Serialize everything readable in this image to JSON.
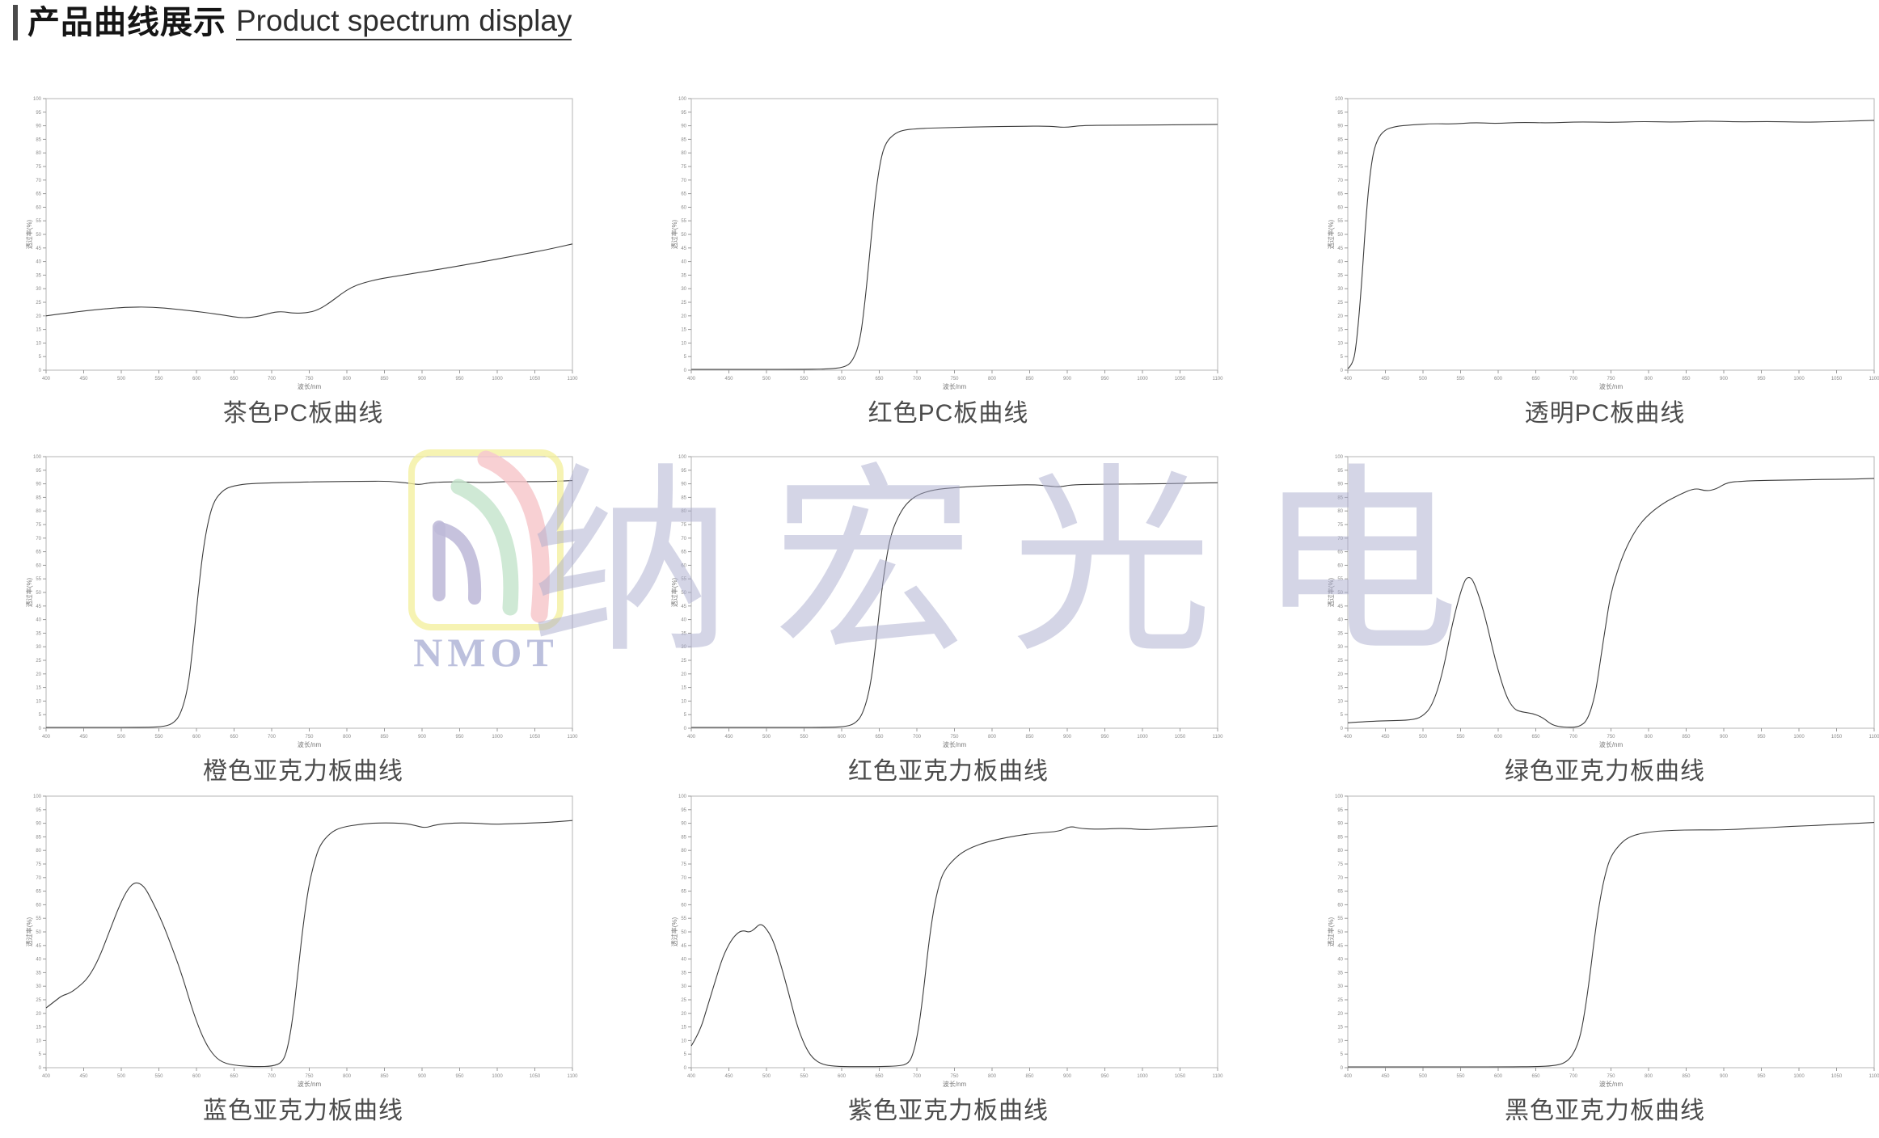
{
  "page": {
    "title_zh": "产品曲线展示",
    "title_en": "Product spectrum display"
  },
  "watermark": {
    "chars": [
      "纳",
      "宏",
      "光",
      "电"
    ],
    "logo_text": "NMOT",
    "colors": {
      "frame_yellow": "#f3ee9a",
      "arc_red": "#f5c3c8",
      "arc_green": "#c2e2ca",
      "arc_purple": "#b7b1d4",
      "text_purple": "#a9acd0"
    }
  },
  "axes": {
    "x_label": "波长/nm",
    "y_label": "透过率(%)",
    "x_ticks": [
      400,
      450,
      500,
      550,
      600,
      650,
      700,
      750,
      800,
      850,
      900,
      950,
      1000,
      1050,
      1100
    ],
    "y_ticks": [
      0,
      5,
      10,
      15,
      20,
      25,
      30,
      35,
      40,
      45,
      50,
      55,
      60,
      65,
      70,
      75,
      80,
      85,
      90,
      95,
      100
    ],
    "curve_color": "#3c3c3c"
  },
  "chart_data": [
    {
      "type": "line",
      "title": "茶色PC板曲线",
      "xlabel": "波长/nm",
      "ylabel": "透过率(%)",
      "xlim": [
        400,
        1100
      ],
      "ylim": [
        0,
        100
      ],
      "points": [
        [
          400,
          20
        ],
        [
          435,
          21.3
        ],
        [
          470,
          22.4
        ],
        [
          505,
          23.2
        ],
        [
          540,
          23.3
        ],
        [
          575,
          22.4
        ],
        [
          610,
          21.3
        ],
        [
          638,
          20.2
        ],
        [
          659,
          19.2
        ],
        [
          680,
          19.6
        ],
        [
          701,
          21.3
        ],
        [
          715,
          21.6
        ],
        [
          729,
          20.9
        ],
        [
          750,
          21.2
        ],
        [
          764,
          22.5
        ],
        [
          778,
          25
        ],
        [
          792,
          28
        ],
        [
          806,
          30.5
        ],
        [
          820,
          32
        ],
        [
          841,
          33.5
        ],
        [
          869,
          34.8
        ],
        [
          904,
          36.3
        ],
        [
          946,
          38.2
        ],
        [
          988,
          40.3
        ],
        [
          1030,
          42.5
        ],
        [
          1065,
          44.3
        ],
        [
          1100,
          46.5
        ]
      ]
    },
    {
      "type": "line",
      "title": "红色PC板曲线",
      "xlabel": "波长/nm",
      "ylabel": "透过率(%)",
      "xlim": [
        400,
        1100
      ],
      "ylim": [
        0,
        100
      ],
      "points": [
        [
          400,
          0.3
        ],
        [
          470,
          0.3
        ],
        [
          540,
          0.3
        ],
        [
          582,
          0.4
        ],
        [
          603,
          1
        ],
        [
          614,
          3
        ],
        [
          624,
          10
        ],
        [
          631,
          25
        ],
        [
          638,
          45
        ],
        [
          645,
          65
        ],
        [
          652,
          78
        ],
        [
          659,
          84
        ],
        [
          670,
          87
        ],
        [
          680,
          88.3
        ],
        [
          701,
          89
        ],
        [
          736,
          89.3
        ],
        [
          785,
          89.6
        ],
        [
          834,
          89.8
        ],
        [
          876,
          89.9
        ],
        [
          897,
          89.3
        ],
        [
          918,
          90.1
        ],
        [
          960,
          90.2
        ],
        [
          1016,
          90.3
        ],
        [
          1100,
          90.5
        ]
      ]
    },
    {
      "type": "line",
      "title": "透明PC板曲线",
      "xlabel": "波长/nm",
      "ylabel": "透过率(%)",
      "xlim": [
        400,
        1100
      ],
      "ylim": [
        0,
        100
      ],
      "points": [
        [
          400,
          0.5
        ],
        [
          406,
          2
        ],
        [
          411,
          8
        ],
        [
          418,
          30
        ],
        [
          425,
          60
        ],
        [
          432,
          78
        ],
        [
          439,
          85
        ],
        [
          449,
          88.5
        ],
        [
          463,
          89.8
        ],
        [
          484,
          90.3
        ],
        [
          512,
          90.8
        ],
        [
          540,
          90.6
        ],
        [
          568,
          91.2
        ],
        [
          596,
          90.8
        ],
        [
          631,
          91.3
        ],
        [
          666,
          91.0
        ],
        [
          708,
          91.5
        ],
        [
          750,
          91.2
        ],
        [
          792,
          91.6
        ],
        [
          834,
          91.3
        ],
        [
          876,
          91.8
        ],
        [
          918,
          91.4
        ],
        [
          960,
          91.6
        ],
        [
          1002,
          91.3
        ],
        [
          1044,
          91.5
        ],
        [
          1100,
          92
        ]
      ]
    },
    {
      "type": "line",
      "title": "橙色亚克力板曲线",
      "xlabel": "波长/nm",
      "ylabel": "透过率(%)",
      "xlim": [
        400,
        1100
      ],
      "ylim": [
        0,
        100
      ],
      "points": [
        [
          400,
          0.3
        ],
        [
          470,
          0.3
        ],
        [
          526,
          0.3
        ],
        [
          554,
          0.5
        ],
        [
          568,
          1.5
        ],
        [
          579,
          5
        ],
        [
          589,
          15
        ],
        [
          596,
          32
        ],
        [
          603,
          52
        ],
        [
          610,
          68
        ],
        [
          617,
          78
        ],
        [
          624,
          84
        ],
        [
          635,
          87.5
        ],
        [
          645,
          89
        ],
        [
          666,
          90
        ],
        [
          694,
          90.3
        ],
        [
          736,
          90.6
        ],
        [
          778,
          90.8
        ],
        [
          820,
          90.9
        ],
        [
          855,
          91
        ],
        [
          883,
          90.2
        ],
        [
          897,
          89.6
        ],
        [
          911,
          90.5
        ],
        [
          946,
          90.8
        ],
        [
          981,
          90.4
        ],
        [
          1016,
          90.9
        ],
        [
          1058,
          90.7
        ],
        [
          1100,
          91.2
        ]
      ]
    },
    {
      "type": "line",
      "title": "红色亚克力板曲线",
      "xlabel": "波长/nm",
      "ylabel": "透过率(%)",
      "xlim": [
        400,
        1100
      ],
      "ylim": [
        0,
        100
      ],
      "points": [
        [
          400,
          0.3
        ],
        [
          505,
          0.3
        ],
        [
          575,
          0.3
        ],
        [
          603,
          0.5
        ],
        [
          617,
          1.5
        ],
        [
          628,
          5
        ],
        [
          638,
          15
        ],
        [
          645,
          30
        ],
        [
          652,
          48
        ],
        [
          659,
          62
        ],
        [
          666,
          72
        ],
        [
          677,
          79
        ],
        [
          687,
          83
        ],
        [
          701,
          86
        ],
        [
          722,
          87.8
        ],
        [
          750,
          88.6
        ],
        [
          785,
          89.2
        ],
        [
          820,
          89.5
        ],
        [
          855,
          89.7
        ],
        [
          876,
          89.2
        ],
        [
          890,
          88.8
        ],
        [
          904,
          89.6
        ],
        [
          932,
          89.8
        ],
        [
          974,
          89.9
        ],
        [
          1016,
          90
        ],
        [
          1058,
          90.2
        ],
        [
          1100,
          90.4
        ]
      ]
    },
    {
      "type": "line",
      "title": "绿色亚克力板曲线",
      "xlabel": "波长/nm",
      "ylabel": "透过率(%)",
      "xlim": [
        400,
        1100
      ],
      "ylim": [
        0,
        100
      ],
      "points": [
        [
          400,
          2
        ],
        [
          428,
          2.5
        ],
        [
          456,
          2.8
        ],
        [
          484,
          3
        ],
        [
          498,
          4
        ],
        [
          512,
          8
        ],
        [
          526,
          20
        ],
        [
          540,
          40
        ],
        [
          554,
          54
        ],
        [
          561,
          56
        ],
        [
          568,
          54
        ],
        [
          582,
          42
        ],
        [
          596,
          25
        ],
        [
          610,
          12
        ],
        [
          621,
          7
        ],
        [
          631,
          6
        ],
        [
          645,
          5.5
        ],
        [
          659,
          4
        ],
        [
          670,
          1.5
        ],
        [
          680,
          0.6
        ],
        [
          694,
          0.3
        ],
        [
          708,
          0.5
        ],
        [
          719,
          3
        ],
        [
          729,
          12
        ],
        [
          736,
          25
        ],
        [
          743,
          38
        ],
        [
          750,
          50
        ],
        [
          761,
          60
        ],
        [
          771,
          67
        ],
        [
          785,
          74
        ],
        [
          799,
          78.5
        ],
        [
          820,
          83
        ],
        [
          841,
          86
        ],
        [
          862,
          88.5
        ],
        [
          876,
          87.3
        ],
        [
          890,
          88
        ],
        [
          904,
          90.5
        ],
        [
          925,
          91
        ],
        [
          960,
          91.3
        ],
        [
          995,
          91.4
        ],
        [
          1030,
          91.6
        ],
        [
          1065,
          91.7
        ],
        [
          1100,
          92
        ]
      ]
    },
    {
      "type": "line",
      "title": "蓝色亚克力板曲线",
      "xlabel": "波长/nm",
      "ylabel": "透过率(%)",
      "xlim": [
        400,
        1100
      ],
      "ylim": [
        0,
        100
      ],
      "points": [
        [
          400,
          22
        ],
        [
          414,
          25
        ],
        [
          421,
          26.5
        ],
        [
          432,
          27.5
        ],
        [
          442,
          29.5
        ],
        [
          456,
          33
        ],
        [
          470,
          40
        ],
        [
          484,
          50
        ],
        [
          498,
          60
        ],
        [
          509,
          66
        ],
        [
          519,
          68.5
        ],
        [
          530,
          67
        ],
        [
          540,
          62
        ],
        [
          554,
          54
        ],
        [
          568,
          44
        ],
        [
          582,
          33
        ],
        [
          596,
          20
        ],
        [
          610,
          10
        ],
        [
          624,
          4
        ],
        [
          638,
          1.5
        ],
        [
          659,
          0.6
        ],
        [
          680,
          0.4
        ],
        [
          701,
          0.5
        ],
        [
          715,
          2
        ],
        [
          722,
          8
        ],
        [
          729,
          20
        ],
        [
          736,
          38
        ],
        [
          743,
          55
        ],
        [
          750,
          68
        ],
        [
          757,
          76
        ],
        [
          764,
          82
        ],
        [
          778,
          86.5
        ],
        [
          792,
          88.5
        ],
        [
          820,
          89.8
        ],
        [
          848,
          90.2
        ],
        [
          876,
          90
        ],
        [
          890,
          89.3
        ],
        [
          904,
          88.2
        ],
        [
          918,
          89.5
        ],
        [
          946,
          90.2
        ],
        [
          974,
          90
        ],
        [
          995,
          89.6
        ],
        [
          1016,
          89.8
        ],
        [
          1044,
          90.1
        ],
        [
          1072,
          90.4
        ],
        [
          1100,
          91
        ]
      ]
    },
    {
      "type": "line",
      "title": "紫色亚克力板曲线",
      "xlabel": "波长/nm",
      "ylabel": "透过率(%)",
      "xlim": [
        400,
        1100
      ],
      "ylim": [
        0,
        100
      ],
      "points": [
        [
          400,
          8
        ],
        [
          411,
          13
        ],
        [
          421,
          22
        ],
        [
          432,
          32
        ],
        [
          442,
          41
        ],
        [
          453,
          47
        ],
        [
          463,
          50
        ],
        [
          470,
          50.5
        ],
        [
          477,
          49.8
        ],
        [
          484,
          51
        ],
        [
          491,
          53
        ],
        [
          498,
          52
        ],
        [
          509,
          47
        ],
        [
          519,
          38
        ],
        [
          530,
          27
        ],
        [
          540,
          16
        ],
        [
          551,
          8
        ],
        [
          561,
          3.5
        ],
        [
          575,
          1
        ],
        [
          596,
          0.4
        ],
        [
          624,
          0.4
        ],
        [
          652,
          0.4
        ],
        [
          673,
          0.6
        ],
        [
          687,
          1.2
        ],
        [
          694,
          4
        ],
        [
          701,
          12
        ],
        [
          708,
          26
        ],
        [
          715,
          44
        ],
        [
          722,
          58
        ],
        [
          729,
          67
        ],
        [
          736,
          72.5
        ],
        [
          750,
          77
        ],
        [
          764,
          80
        ],
        [
          785,
          82.5
        ],
        [
          806,
          84
        ],
        [
          834,
          85.5
        ],
        [
          862,
          86.5
        ],
        [
          890,
          87
        ],
        [
          904,
          89
        ],
        [
          918,
          88
        ],
        [
          946,
          87.8
        ],
        [
          974,
          88.2
        ],
        [
          1002,
          87.6
        ],
        [
          1030,
          88
        ],
        [
          1058,
          88.4
        ],
        [
          1100,
          89
        ]
      ]
    },
    {
      "type": "line",
      "title": "黑色亚克力板曲线",
      "xlabel": "波长/nm",
      "ylabel": "透过率(%)",
      "xlim": [
        400,
        1100
      ],
      "ylim": [
        0,
        100
      ],
      "points": [
        [
          400,
          0.3
        ],
        [
          470,
          0.3
        ],
        [
          540,
          0.3
        ],
        [
          610,
          0.3
        ],
        [
          652,
          0.4
        ],
        [
          673,
          0.7
        ],
        [
          687,
          1.5
        ],
        [
          698,
          4
        ],
        [
          708,
          10
        ],
        [
          715,
          20
        ],
        [
          722,
          34
        ],
        [
          729,
          50
        ],
        [
          736,
          63
        ],
        [
          743,
          72
        ],
        [
          750,
          78
        ],
        [
          761,
          82
        ],
        [
          771,
          84.5
        ],
        [
          785,
          86
        ],
        [
          806,
          87
        ],
        [
          834,
          87.4
        ],
        [
          862,
          87.6
        ],
        [
          890,
          87.5
        ],
        [
          918,
          87.8
        ],
        [
          946,
          88.2
        ],
        [
          974,
          88.6
        ],
        [
          1002,
          89
        ],
        [
          1030,
          89.3
        ],
        [
          1065,
          89.8
        ],
        [
          1100,
          90.3
        ]
      ]
    }
  ]
}
